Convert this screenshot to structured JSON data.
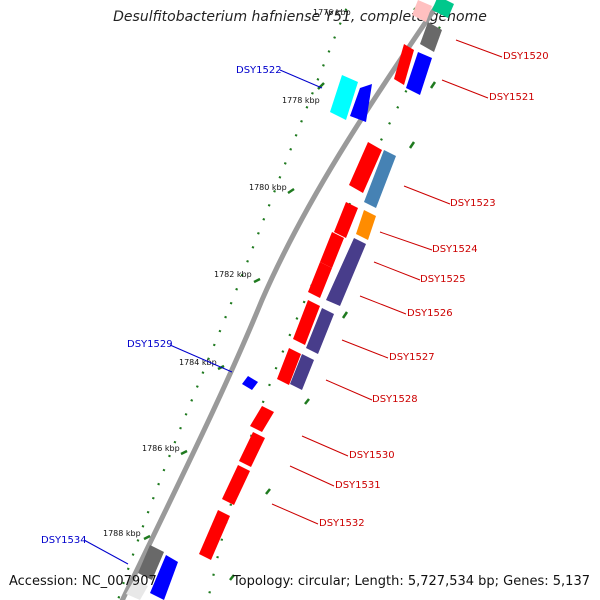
{
  "title": "Desulfitobacterium hafniense Y51, complete genome",
  "accession": "Accession: NC_007907",
  "topology": "Topology: circular; Length: 5,727,534 bp; Genes: 5,137",
  "ticks": [
    {
      "label": "1776 kbp"
    },
    {
      "label": "1778 kbp"
    },
    {
      "label": "1780 kbp"
    },
    {
      "label": "1782 kbp"
    },
    {
      "label": "1784 kbp"
    },
    {
      "label": "1786 kbp"
    },
    {
      "label": "1788 kbp"
    }
  ],
  "gene_labels": [
    {
      "label": "DSY1520",
      "color": "#cc0000"
    },
    {
      "label": "DSY1521",
      "color": "#cc0000"
    },
    {
      "label": "DSY1522",
      "color": "#0000cc"
    },
    {
      "label": "DSY1523",
      "color": "#cc0000"
    },
    {
      "label": "DSY1524",
      "color": "#cc0000"
    },
    {
      "label": "DSY1525",
      "color": "#cc0000"
    },
    {
      "label": "DSY1526",
      "color": "#cc0000"
    },
    {
      "label": "DSY1527",
      "color": "#cc0000"
    },
    {
      "label": "DSY1528",
      "color": "#cc0000"
    },
    {
      "label": "DSY1529",
      "color": "#0000cc"
    },
    {
      "label": "DSY1530",
      "color": "#cc0000"
    },
    {
      "label": "DSY1531",
      "color": "#cc0000"
    },
    {
      "label": "DSY1532",
      "color": "#cc0000"
    },
    {
      "label": "DSY1534",
      "color": "#0000cc"
    }
  ],
  "colors": {
    "forward_cds": "#ff0000",
    "reverse_cds": "#0000ff",
    "backbone": "#808080",
    "tick": "#1f7a1f",
    "cog_cyan": "#00ffff",
    "cog_steelblue": "#4682b4",
    "cog_orange": "#ff8c00",
    "cog_slate": "#483d8b",
    "cog_grey": "#696969",
    "cog_green": "#00c88c"
  }
}
